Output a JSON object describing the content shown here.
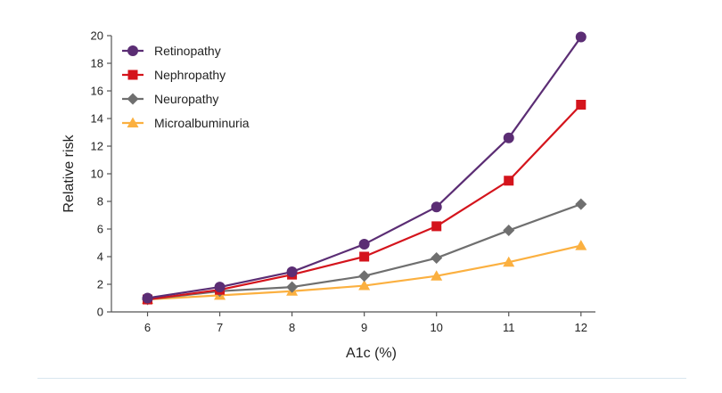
{
  "chart_data": {
    "type": "line",
    "title": "",
    "xlabel": "A1c (%)",
    "ylabel": "Relative risk",
    "x": [
      6,
      7,
      8,
      9,
      10,
      11,
      12
    ],
    "xlim": [
      5.5,
      12.2
    ],
    "ylim": [
      0,
      20
    ],
    "xticks": [
      6,
      7,
      8,
      9,
      10,
      11,
      12
    ],
    "yticks": [
      0,
      2,
      4,
      6,
      8,
      10,
      12,
      14,
      16,
      18,
      20
    ],
    "grid": false,
    "legend_position": "top-left",
    "series": [
      {
        "name": "Retinopathy",
        "color": "#5b2d74",
        "marker": "circle",
        "values": [
          1.0,
          1.8,
          2.9,
          4.9,
          7.6,
          12.6,
          19.9
        ]
      },
      {
        "name": "Nephropathy",
        "color": "#d4141c",
        "marker": "square",
        "values": [
          0.9,
          1.6,
          2.7,
          4.0,
          6.2,
          9.5,
          15.0
        ]
      },
      {
        "name": "Neuropathy",
        "color": "#6f6f6f",
        "marker": "diamond",
        "values": [
          0.9,
          1.5,
          1.8,
          2.6,
          3.9,
          5.9,
          7.8
        ]
      },
      {
        "name": "Microalbuminuria",
        "color": "#fbb040",
        "marker": "triangle",
        "values": [
          0.9,
          1.2,
          1.5,
          1.9,
          2.6,
          3.6,
          4.8
        ]
      }
    ]
  }
}
